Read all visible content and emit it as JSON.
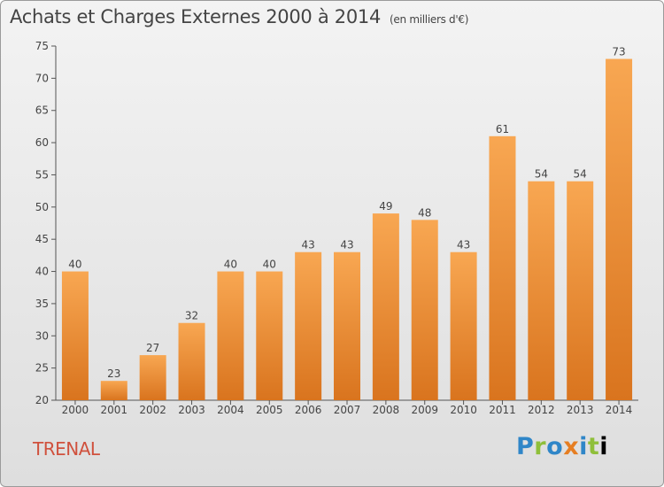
{
  "title": "Achats et Charges Externes 2000 à 2014",
  "subtitle": "(en milliers d'€)",
  "location": "TRENAL",
  "brand": {
    "parts": [
      "P",
      "r",
      "o",
      "x",
      "i",
      "t",
      "i"
    ],
    "text": "Proxiti"
  },
  "colors": {
    "bar_top": "#f8a752",
    "bar_bottom": "#d9741e",
    "location_text": "#d0513d"
  },
  "chart_data": {
    "type": "bar",
    "categories": [
      "2000",
      "2001",
      "2002",
      "2003",
      "2004",
      "2005",
      "2006",
      "2007",
      "2008",
      "2009",
      "2010",
      "2011",
      "2012",
      "2013",
      "2014"
    ],
    "values": [
      40,
      23,
      27,
      32,
      40,
      40,
      43,
      43,
      49,
      48,
      43,
      61,
      54,
      54,
      73
    ],
    "ylim": [
      20,
      75
    ],
    "yticks": [
      20,
      25,
      30,
      35,
      40,
      45,
      50,
      55,
      60,
      65,
      70,
      75
    ],
    "grid": false,
    "data_labels": true
  }
}
